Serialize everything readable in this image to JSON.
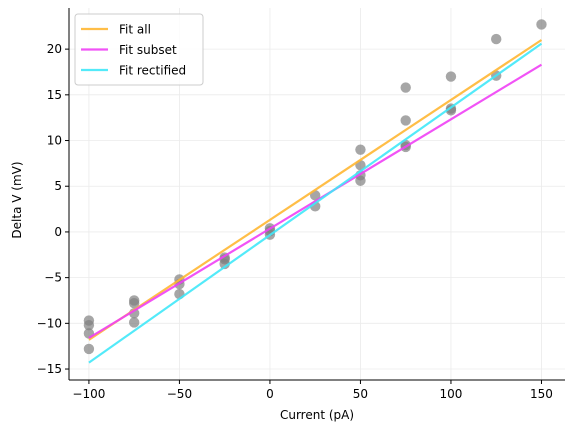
{
  "chart_data": {
    "type": "scatter",
    "xlabel": "Current (pA)",
    "ylabel": "Delta V (mV)",
    "xlim": [
      -111,
      163
    ],
    "ylim": [
      -16.2,
      24.5
    ],
    "xticks": [
      -100,
      -50,
      0,
      50,
      100,
      150
    ],
    "yticks": [
      -15,
      -10,
      -5,
      0,
      5,
      10,
      15,
      20
    ],
    "grid": true,
    "legend_position": "top-left",
    "points": {
      "color": "#808080",
      "x": [
        -100,
        -100,
        -100,
        -100,
        -75,
        -75,
        -75,
        -75,
        -50,
        -50,
        -50,
        -25,
        -25,
        -25,
        0,
        0,
        0,
        25,
        25,
        50,
        50,
        50,
        50,
        75,
        75,
        75,
        75,
        100,
        100,
        100,
        125,
        125,
        150
      ],
      "y": [
        -9.7,
        -10.2,
        -11.1,
        -12.8,
        -7.5,
        -7.8,
        -8.9,
        -9.9,
        -5.2,
        -5.7,
        -6.8,
        -2.8,
        -3.0,
        -3.5,
        0.4,
        0.1,
        -0.3,
        4.0,
        2.8,
        9.0,
        7.3,
        6.2,
        5.6,
        15.8,
        12.2,
        9.5,
        9.3,
        17.0,
        13.5,
        13.3,
        21.1,
        17.1,
        22.7
      ]
    },
    "series": [
      {
        "name": "Fit all",
        "color": "#ffb733",
        "x": [
          -100,
          150
        ],
        "y": [
          -11.8,
          21.0
        ]
      },
      {
        "name": "Fit subset",
        "color": "#f040f5",
        "x": [
          -100,
          150
        ],
        "y": [
          -11.6,
          18.3
        ]
      },
      {
        "name": "Fit rectified",
        "color": "#40e8f8",
        "x": [
          -100,
          150
        ],
        "y": [
          -14.3,
          20.6
        ]
      }
    ]
  }
}
